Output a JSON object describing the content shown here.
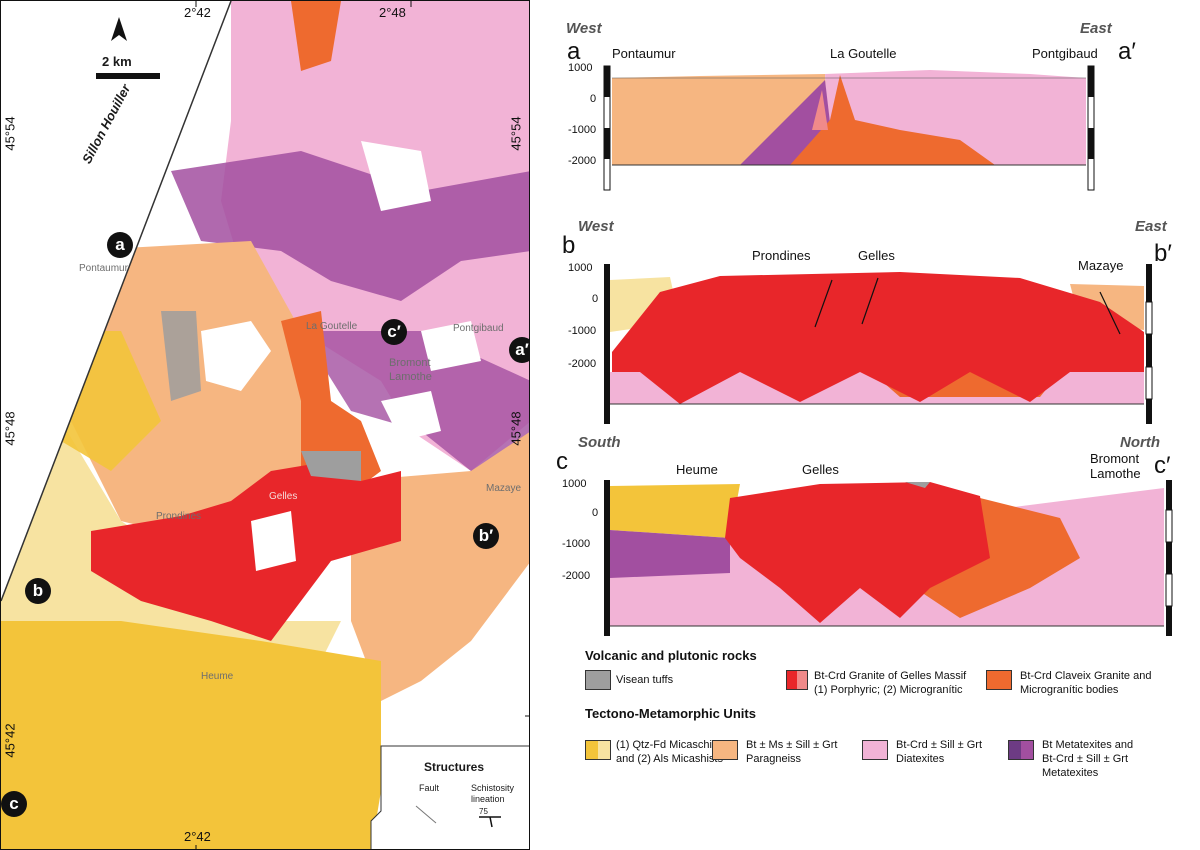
{
  "map": {
    "scale_label": "2 km",
    "coords": {
      "top_left": "2°42",
      "top_right": "2°48",
      "bottom": "2°42",
      "left_upper": "45°54",
      "left_middle": "45°48",
      "left_lower": "45°42",
      "right_upper": "45°54",
      "right_middle": "45°48"
    },
    "sillon_label": "Sillon Houiller",
    "places": {
      "pontaumur": "Pontaumur",
      "la_goutelle": "La Goutelle",
      "pontgibaud": "Pontgibaud",
      "bromont": "Bromont",
      "lamothe": "Lamothe",
      "gelles": "Gelles",
      "prondines": "Prondines",
      "mazaye": "Mazaye",
      "heume": "Heume"
    },
    "markers": {
      "a": "a",
      "a_prime": "a′",
      "b": "b",
      "b_prime": "b′",
      "c": "c",
      "c_prime": "c′"
    },
    "structures": {
      "title": "Structures",
      "fault": "Fault",
      "schistosity_line1": "Schistosity",
      "schistosity_line2": "lineation",
      "dip_example": "75"
    }
  },
  "sections": {
    "a": {
      "start": "a",
      "end": "a′",
      "west": "West",
      "east": "East",
      "left_place": "Pontaumur",
      "mid_place": "La Goutelle",
      "right_place": "Pontgibaud",
      "ticks": [
        "1000",
        "0",
        "-1000",
        "-2000"
      ]
    },
    "b": {
      "start": "b",
      "end": "b′",
      "west": "West",
      "east": "East",
      "place1": "Prondines",
      "place2": "Gelles",
      "place3": "Mazaye",
      "ticks": [
        "1000",
        "0",
        "-1000",
        "-2000"
      ]
    },
    "c": {
      "start": "c",
      "end": "c′",
      "south": "South",
      "north": "North",
      "place1": "Heume",
      "place2": "Gelles",
      "place3_line1": "Bromont",
      "place3_line2": "Lamothe",
      "ticks": [
        "1000",
        "0",
        "-1000",
        "-2000"
      ]
    }
  },
  "legend": {
    "volcanic_title": "Volcanic and plutonic rocks",
    "tectono_title": "Tectono-Metamorphic Units",
    "items": {
      "visean_tuffs": "Visean tuffs",
      "gelles_line1": "Bt-Crd Granite of Gelles Massif",
      "gelles_line2": "(1) Porphyric; (2) Microgranític",
      "claveix_line1": "Bt-Crd Claveix Granite and",
      "claveix_line2": "Microgranític bodies",
      "micaschists_line1": "(1) Qtz-Fd Micaschists",
      "micaschists_line2": "and (2) Als Micashists",
      "paragneiss_line1": "Bt ± Ms ± Sill ± Grt",
      "paragneiss_line2": "Paragneiss",
      "diatexites_line1": "Bt-Crd ± Sill ± Grt",
      "diatexites_line2": "Diatexites",
      "metatexites_line1": "Bt Metatexites and",
      "metatexites_line2": "Bt-Crd ± Sill ± Grt",
      "metatexites_line3": "Metatexites"
    },
    "colors": {
      "visean_tuffs": "#9e9e9e",
      "gelles_granite": "#e8262a",
      "gelles_micro": "#f08a8a",
      "claveix": "#ee6a2f",
      "micaschist_qtz": "#f7e3a1",
      "micaschist_als": "#f3c43a",
      "paragneiss": "#f6b681",
      "diatexites": "#f2b3d6",
      "metatexites": "#a24fa0",
      "metatexites_dark": "#6d3b84"
    }
  }
}
